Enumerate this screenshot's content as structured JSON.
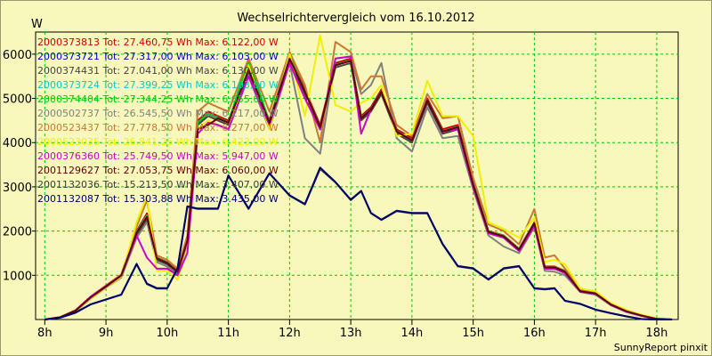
{
  "chart_data": {
    "type": "line",
    "title": "Wechselrichtervergleich vom 16.10.2012",
    "ylabel": "W",
    "xlabel": "",
    "footer": "SunnyReport pinxit",
    "x_range": [
      7.85,
      18.35
    ],
    "ylim": [
      0,
      6500
    ],
    "x_ticks": [
      8,
      9,
      10,
      11,
      12,
      13,
      14,
      15,
      16,
      17,
      18
    ],
    "x_tick_labels": [
      "8h",
      "9h",
      "10h",
      "11h",
      "12h",
      "13h",
      "14h",
      "15h",
      "16h",
      "17h",
      "18h"
    ],
    "y_ticks": [
      1000,
      2000,
      3000,
      4000,
      5000,
      6000
    ],
    "y_tick_labels": [
      "1000",
      "2000",
      "3000",
      "4000",
      "5000",
      "6000"
    ],
    "grid": true,
    "legend": [
      {
        "text": "2000373813 Tot: 27.460,75 Wh Max: 6.122,00 W",
        "color": "#cc0000"
      },
      {
        "text": "2000373721 Tot: 27.317,00 Wh Max: 6.103,00 W",
        "color": "#0000cc"
      },
      {
        "text": "2000374431 Tot: 27.041,00 Wh Max: 6.130,00 W",
        "color": "#444444"
      },
      {
        "text": "2000373724 Tot: 27.399,25 Wh Max: 6.103,00 W",
        "color": "#00cccc"
      },
      {
        "text": "2000374404 Tot: 27.344,25 Wh Max: 6.055,00 W",
        "color": "#00cc00"
      },
      {
        "text": "2000502737 Tot: 26.545,50 Wh Max: 6.217,00 W",
        "color": "#808080"
      },
      {
        "text": "2000523437 Tot: 27.778,50 Wh Max: 6.277,00 W",
        "color": "#c87832"
      },
      {
        "text": "2000523035 Tot: 26.841,25 Wh Max: 6.423,00 W",
        "color": "#f0f000"
      },
      {
        "text": "2000376360 Tot: 25.749,50 Wh Max: 5.947,00 W",
        "color": "#cc00cc"
      },
      {
        "text": "2001129627 Tot: 27.053,75 Wh Max: 6.060,00 W",
        "color": "#640000"
      },
      {
        "text": "2001132036 Tot: 15.213,50 Wh Max: 3.407,00 W",
        "color": "#3c3c3c"
      },
      {
        "text": "2001132087 Tot: 15.303,88 Wh Max: 3.435,00 W",
        "color": "#00006e"
      }
    ],
    "x": [
      8,
      8.25,
      8.5,
      8.75,
      9,
      9.25,
      9.5,
      9.67,
      9.83,
      10,
      10.17,
      10.33,
      10.5,
      10.67,
      10.83,
      11,
      11.33,
      11.67,
      12,
      12.25,
      12.5,
      12.75,
      13,
      13.17,
      13.33,
      13.5,
      13.75,
      14,
      14.25,
      14.5,
      14.75,
      15,
      15.25,
      15.5,
      15.75,
      16,
      16.17,
      16.33,
      16.5,
      16.75,
      17,
      17.25,
      17.5,
      17.75,
      18,
      18.25
    ],
    "series": [
      {
        "name": "2000373813",
        "color": "#cc0000",
        "values": [
          0,
          50,
          200,
          500,
          750,
          1000,
          2000,
          2400,
          1400,
          1300,
          1100,
          1800,
          4500,
          4700,
          4600,
          4500,
          5700,
          4500,
          5950,
          5200,
          4400,
          5800,
          5900,
          4600,
          4800,
          5200,
          4300,
          4100,
          5000,
          4300,
          4400,
          3100,
          2000,
          1900,
          1600,
          2200,
          1200,
          1200,
          1100,
          650,
          600,
          350,
          200,
          100,
          20,
          0
        ]
      },
      {
        "name": "2000373721",
        "color": "#0000cc",
        "values": [
          0,
          50,
          200,
          500,
          740,
          990,
          1950,
          2300,
          1380,
          1280,
          1080,
          1780,
          4450,
          4650,
          4550,
          4450,
          5650,
          4450,
          5900,
          5150,
          4350,
          5750,
          5850,
          4550,
          4750,
          5150,
          4250,
          4050,
          4950,
          4250,
          4350,
          3050,
          1980,
          1880,
          1580,
          2180,
          1180,
          1180,
          1080,
          640,
          590,
          340,
          190,
          90,
          15,
          0
        ]
      },
      {
        "name": "2000374431",
        "color": "#444444",
        "values": [
          0,
          50,
          190,
          490,
          740,
          980,
          1900,
          2250,
          1350,
          1250,
          1060,
          1750,
          4400,
          4600,
          4500,
          4400,
          5600,
          4400,
          5850,
          5100,
          4300,
          5700,
          5800,
          4500,
          4700,
          5100,
          4200,
          4000,
          4900,
          4200,
          4300,
          3000,
          1950,
          1850,
          1550,
          2150,
          1150,
          1150,
          1050,
          630,
          580,
          330,
          180,
          85,
          15,
          0
        ]
      },
      {
        "name": "2000373724",
        "color": "#00cccc",
        "values": [
          0,
          50,
          200,
          500,
          750,
          1000,
          1980,
          2350,
          1390,
          1290,
          1090,
          1790,
          4460,
          4660,
          4560,
          4460,
          5900,
          4460,
          5920,
          5160,
          4360,
          5760,
          5860,
          4560,
          4760,
          5160,
          4260,
          4060,
          4960,
          4260,
          4360,
          3060,
          1990,
          1890,
          1590,
          2190,
          1190,
          1190,
          1090,
          645,
          595,
          345,
          195,
          95,
          18,
          0
        ]
      },
      {
        "name": "2000374404",
        "color": "#00cc00",
        "values": [
          0,
          50,
          200,
          500,
          745,
          995,
          1970,
          2330,
          1385,
          1285,
          1085,
          1785,
          4455,
          4655,
          4555,
          4455,
          5850,
          4455,
          5950,
          5155,
          4355,
          5755,
          5855,
          4555,
          4755,
          5155,
          4255,
          4055,
          4955,
          4255,
          4355,
          3055,
          1985,
          1885,
          1585,
          2185,
          1185,
          1185,
          1085,
          642,
          592,
          342,
          192,
          92,
          16,
          0
        ]
      },
      {
        "name": "2000502737",
        "color": "#808080",
        "values": [
          0,
          45,
          180,
          470,
          720,
          950,
          1850,
          2200,
          1300,
          1200,
          1020,
          1700,
          4300,
          4500,
          4400,
          4300,
          5500,
          4300,
          5800,
          4100,
          3750,
          5900,
          5950,
          5100,
          5300,
          5800,
          4100,
          3800,
          4800,
          4100,
          4150,
          2950,
          1900,
          1650,
          1500,
          2100,
          1100,
          1080,
          1000,
          620,
          560,
          320,
          170,
          80,
          12,
          0
        ]
      },
      {
        "name": "2000523437",
        "color": "#c87832",
        "values": [
          0,
          55,
          210,
          520,
          770,
          1020,
          2100,
          2700,
          1450,
          1350,
          1150,
          1900,
          4700,
          4900,
          4800,
          4700,
          5900,
          4700,
          6050,
          5300,
          4000,
          6277,
          6050,
          5200,
          5500,
          5500,
          4400,
          4150,
          5100,
          4550,
          4600,
          3200,
          2150,
          2000,
          1700,
          2500,
          1400,
          1450,
          1150,
          680,
          620,
          360,
          210,
          105,
          22,
          0
        ]
      },
      {
        "name": "2000523035",
        "color": "#f0f000",
        "values": [
          0,
          50,
          190,
          480,
          730,
          970,
          2200,
          2800,
          1100,
          1100,
          900,
          1600,
          4300,
          4500,
          4400,
          4300,
          5750,
          4300,
          6000,
          4600,
          6423,
          4850,
          4700,
          4900,
          5000,
          5300,
          4150,
          4200,
          5400,
          4600,
          4600,
          4150,
          2200,
          2050,
          1850,
          2300,
          1300,
          1350,
          1250,
          700,
          640,
          370,
          220,
          110,
          25,
          0
        ]
      },
      {
        "name": "2000376360",
        "color": "#cc00cc",
        "values": [
          0,
          50,
          200,
          520,
          760,
          1000,
          1900,
          1400,
          1150,
          1150,
          1000,
          1500,
          4200,
          4450,
          4400,
          4300,
          5500,
          4400,
          5800,
          5000,
          4300,
          5900,
          5947,
          4200,
          4750,
          5150,
          4250,
          4050,
          4950,
          4250,
          4300,
          3000,
          1950,
          1850,
          1550,
          2100,
          1150,
          1150,
          1050,
          630,
          580,
          330,
          180,
          85,
          15,
          0
        ]
      },
      {
        "name": "2001129627",
        "color": "#640000",
        "values": [
          0,
          50,
          200,
          500,
          745,
          995,
          1960,
          2320,
          1380,
          1280,
          1080,
          1780,
          4300,
          4400,
          4550,
          4450,
          5650,
          4450,
          5900,
          5150,
          4350,
          5750,
          5850,
          4550,
          4750,
          5150,
          4250,
          4050,
          4950,
          4250,
          4350,
          3050,
          1980,
          1880,
          1580,
          2180,
          1180,
          1180,
          1080,
          640,
          590,
          340,
          190,
          90,
          15,
          0
        ]
      },
      {
        "name": "2001132036",
        "color": "#3c3c3c",
        "values": [
          0,
          40,
          150,
          340,
          450,
          560,
          1250,
          800,
          700,
          700,
          1150,
          2550,
          2500,
          2500,
          2500,
          3250,
          2500,
          3300,
          2800,
          2600,
          3407,
          3100,
          2700,
          2900,
          2400,
          2250,
          2450,
          2400,
          2400,
          1700,
          1200,
          1150,
          900,
          1150,
          1200,
          700,
          680,
          700,
          420,
          350,
          220,
          140,
          70,
          10,
          0,
          0
        ]
      },
      {
        "name": "2001132087",
        "color": "#00006e",
        "values": [
          0,
          42,
          155,
          345,
          455,
          565,
          1260,
          810,
          710,
          710,
          1160,
          2560,
          2510,
          2510,
          2510,
          3260,
          2510,
          3310,
          2810,
          2610,
          3435,
          3110,
          2710,
          2910,
          2410,
          2260,
          2460,
          2410,
          2410,
          1710,
          1210,
          1160,
          910,
          1160,
          1210,
          710,
          690,
          710,
          425,
          355,
          225,
          145,
          72,
          11,
          0,
          0
        ]
      }
    ]
  }
}
